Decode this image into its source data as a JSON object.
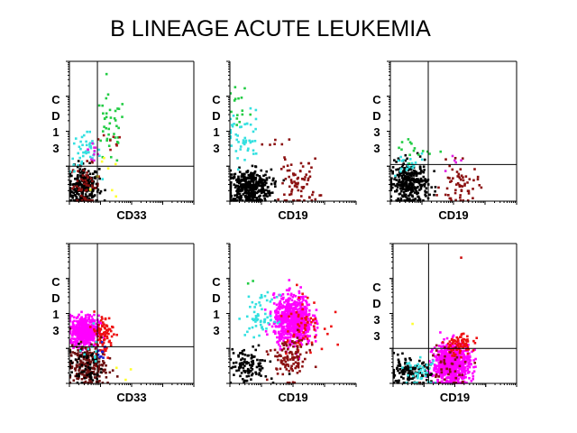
{
  "chart_data": [
    {
      "type": "scatter",
      "xlabel": "CD33",
      "ylabel": "CD13",
      "xlim_decades": [
        0,
        4
      ],
      "ylim_decades": [
        0,
        4
      ],
      "quadrant": [
        0.9,
        1.0
      ],
      "clusters": [
        {
          "color": "#000000",
          "cx": 0.45,
          "cy": 0.4,
          "sx": 0.25,
          "sy": 0.3,
          "n": 260
        },
        {
          "color": "#8b1010",
          "cx": 0.5,
          "cy": 0.45,
          "sx": 0.25,
          "sy": 0.3,
          "n": 50
        },
        {
          "color": "#33e0e0",
          "cx": 0.5,
          "cy": 1.4,
          "sx": 0.25,
          "sy": 0.3,
          "n": 45
        },
        {
          "color": "#e020e0",
          "cx": 0.8,
          "cy": 1.5,
          "sx": 0.1,
          "sy": 0.3,
          "n": 10
        },
        {
          "color": "#22cc44",
          "cx": 1.3,
          "cy": 2.0,
          "sx": 0.25,
          "sy": 0.5,
          "n": 40
        },
        {
          "color": "#a01818",
          "cx": 1.3,
          "cy": 1.7,
          "sx": 0.25,
          "sy": 0.3,
          "n": 8
        },
        {
          "color": "#ffff30",
          "cx": 1.2,
          "cy": 0.6,
          "sx": 0.2,
          "sy": 0.3,
          "n": 8
        }
      ]
    },
    {
      "type": "scatter",
      "xlabel": "CD19",
      "ylabel": "CD13",
      "xlim_decades": [
        0,
        4
      ],
      "ylim_decades": [
        0,
        4
      ],
      "quadrant": null,
      "clusters": [
        {
          "color": "#000000",
          "cx": 0.6,
          "cy": 0.4,
          "sx": 0.35,
          "sy": 0.25,
          "n": 400
        },
        {
          "color": "#33e0e0",
          "cx": 0.4,
          "cy": 1.8,
          "sx": 0.3,
          "sy": 0.4,
          "n": 50
        },
        {
          "color": "#22cc44",
          "cx": 0.3,
          "cy": 2.5,
          "sx": 0.2,
          "sy": 0.4,
          "n": 15
        },
        {
          "color": "#8b1010",
          "cx": 2.2,
          "cy": 0.5,
          "sx": 0.3,
          "sy": 0.35,
          "n": 70
        },
        {
          "color": "#8b1010",
          "cx": 1.6,
          "cy": 1.5,
          "sx": 0.3,
          "sy": 0.3,
          "n": 10
        }
      ]
    },
    {
      "type": "scatter",
      "xlabel": "CD19",
      "ylabel": "CD33",
      "xlim_decades": [
        0,
        4
      ],
      "ylim_decades": [
        0,
        4
      ],
      "quadrant": [
        1.2,
        1.05
      ],
      "clusters": [
        {
          "color": "#000000",
          "cx": 0.6,
          "cy": 0.5,
          "sx": 0.3,
          "sy": 0.3,
          "n": 330
        },
        {
          "color": "#33e0e0",
          "cx": 0.5,
          "cy": 1.0,
          "sx": 0.3,
          "sy": 0.2,
          "n": 20
        },
        {
          "color": "#22cc44",
          "cx": 0.7,
          "cy": 1.5,
          "sx": 0.3,
          "sy": 0.2,
          "n": 15
        },
        {
          "color": "#8b1010",
          "cx": 2.2,
          "cy": 0.45,
          "sx": 0.3,
          "sy": 0.3,
          "n": 60
        },
        {
          "color": "#e020e0",
          "cx": 1.8,
          "cy": 1.0,
          "sx": 0.2,
          "sy": 0.2,
          "n": 5
        }
      ]
    },
    {
      "type": "scatter",
      "xlabel": "CD33",
      "ylabel": "CD13",
      "xlim_decades": [
        0,
        4
      ],
      "ylim_decades": [
        0,
        4
      ],
      "quadrant": [
        0.9,
        1.05
      ],
      "clusters": [
        {
          "color": "#ff00ff",
          "cx": 0.5,
          "cy": 1.5,
          "sx": 0.22,
          "sy": 0.22,
          "n": 500
        },
        {
          "color": "#ee1010",
          "cx": 1.05,
          "cy": 1.4,
          "sx": 0.18,
          "sy": 0.3,
          "n": 90
        },
        {
          "color": "#6b1010",
          "cx": 0.55,
          "cy": 0.5,
          "sx": 0.3,
          "sy": 0.3,
          "n": 220
        },
        {
          "color": "#000000",
          "cx": 0.5,
          "cy": 0.5,
          "sx": 0.3,
          "sy": 0.3,
          "n": 60
        },
        {
          "color": "#2020cc",
          "cx": 1.0,
          "cy": 0.8,
          "sx": 0.1,
          "sy": 0.2,
          "n": 10
        },
        {
          "color": "#33e0e0",
          "cx": 0.7,
          "cy": 1.0,
          "sx": 0.2,
          "sy": 0.2,
          "n": 10
        },
        {
          "color": "#ffff30",
          "cx": 1.5,
          "cy": 0.3,
          "sx": 0.3,
          "sy": 0.2,
          "n": 3
        }
      ]
    },
    {
      "type": "scatter",
      "xlabel": "CD19",
      "ylabel": "CD13",
      "xlim_decades": [
        0,
        4
      ],
      "ylim_decades": [
        0,
        4
      ],
      "quadrant": null,
      "clusters": [
        {
          "color": "#ff00ff",
          "cx": 2.0,
          "cy": 1.8,
          "sx": 0.3,
          "sy": 0.35,
          "n": 700
        },
        {
          "color": "#ee1010",
          "cx": 2.3,
          "cy": 1.8,
          "sx": 0.35,
          "sy": 0.4,
          "n": 60
        },
        {
          "color": "#33e0e0",
          "cx": 1.0,
          "cy": 1.9,
          "sx": 0.25,
          "sy": 0.3,
          "n": 60
        },
        {
          "color": "#8b1010",
          "cx": 1.9,
          "cy": 0.7,
          "sx": 0.3,
          "sy": 0.3,
          "n": 110
        },
        {
          "color": "#000000",
          "cx": 0.6,
          "cy": 0.5,
          "sx": 0.3,
          "sy": 0.25,
          "n": 110
        },
        {
          "color": "#22cc44",
          "cx": 0.8,
          "cy": 2.7,
          "sx": 0.1,
          "sy": 0.1,
          "n": 2
        }
      ]
    },
    {
      "type": "scatter",
      "xlabel": "CD19",
      "ylabel": "CD33",
      "xlim_decades": [
        0,
        4
      ],
      "ylim_decades": [
        0,
        4
      ],
      "quadrant": [
        1.15,
        1.0
      ],
      "clusters": [
        {
          "color": "#ff00ff",
          "cx": 1.9,
          "cy": 0.55,
          "sx": 0.3,
          "sy": 0.3,
          "n": 700
        },
        {
          "color": "#ee1010",
          "cx": 2.1,
          "cy": 1.1,
          "sx": 0.25,
          "sy": 0.15,
          "n": 80
        },
        {
          "color": "#000000",
          "cx": 0.5,
          "cy": 0.3,
          "sx": 0.35,
          "sy": 0.2,
          "n": 130
        },
        {
          "color": "#33e0e0",
          "cx": 0.9,
          "cy": 0.3,
          "sx": 0.25,
          "sy": 0.2,
          "n": 40
        },
        {
          "color": "#8b1010",
          "cx": 1.8,
          "cy": 0.5,
          "sx": 0.4,
          "sy": 0.3,
          "n": 40
        },
        {
          "color": "#cc1010",
          "cx": 2.2,
          "cy": 3.6,
          "sx": 0.01,
          "sy": 0.01,
          "n": 1
        },
        {
          "color": "#ffff30",
          "cx": 0.6,
          "cy": 1.7,
          "sx": 0.05,
          "sy": 0.05,
          "n": 1
        }
      ]
    }
  ],
  "title": "B LINEAGE ACUTE LEUKEMIA"
}
